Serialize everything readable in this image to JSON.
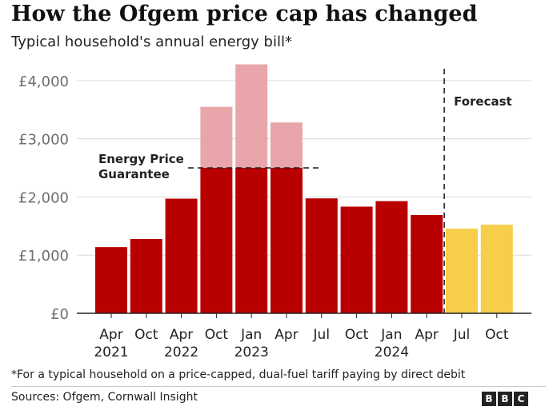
{
  "title": "How the Ofgem price cap has changed",
  "subtitle": "Typical household's annual energy bill*",
  "footnote": "*For a typical household on a price-capped, dual-fuel tariff paying by direct debit",
  "sources": "Sources: Ofgem, Cornwall Insight",
  "logo": [
    "B",
    "B",
    "C"
  ],
  "colors": {
    "actual": "#b80000",
    "above_guarantee": "#e9a6aa",
    "forecast": "#f7ce4a",
    "grid": "#d9d9d9",
    "axis": "#222222"
  },
  "chart_data": {
    "type": "bar",
    "categories": [
      "Apr 2021",
      "Oct",
      "Apr 2022",
      "Oct",
      "Jan 2023",
      "Apr",
      "Jul",
      "Oct",
      "Jan 2024",
      "Apr",
      "Jul",
      "Oct"
    ],
    "x_tick_labels": [
      [
        "Apr",
        "2021"
      ],
      [
        "Oct",
        ""
      ],
      [
        "Apr",
        "2022"
      ],
      [
        "Oct",
        ""
      ],
      [
        "Jan",
        "2023"
      ],
      [
        "Apr",
        ""
      ],
      [
        "Jul",
        ""
      ],
      [
        "Oct",
        ""
      ],
      [
        "Jan",
        "2024"
      ],
      [
        "Apr",
        ""
      ],
      [
        "Jul",
        ""
      ],
      [
        "Oct",
        ""
      ]
    ],
    "values": [
      1138,
      1277,
      1971,
      3549,
      4279,
      3280,
      1976,
      1834,
      1928,
      1690,
      1455,
      1523
    ],
    "capped_values": [
      1138,
      1277,
      1971,
      2500,
      2500,
      2500,
      1976,
      1834,
      1928,
      1690,
      1455,
      1523
    ],
    "forecast_from_index": 10,
    "ylim": [
      0,
      4300
    ],
    "y_ticks": [
      0,
      1000,
      2000,
      3000,
      4000
    ],
    "y_tick_labels": [
      "£0",
      "£1,000",
      "£2,000",
      "£3,000",
      "£4,000"
    ],
    "grid": true,
    "annotations": {
      "guarantee_line": [
        "Energy Price",
        "Guarantee"
      ],
      "guarantee_value": 2500,
      "forecast_label": "Forecast"
    }
  }
}
